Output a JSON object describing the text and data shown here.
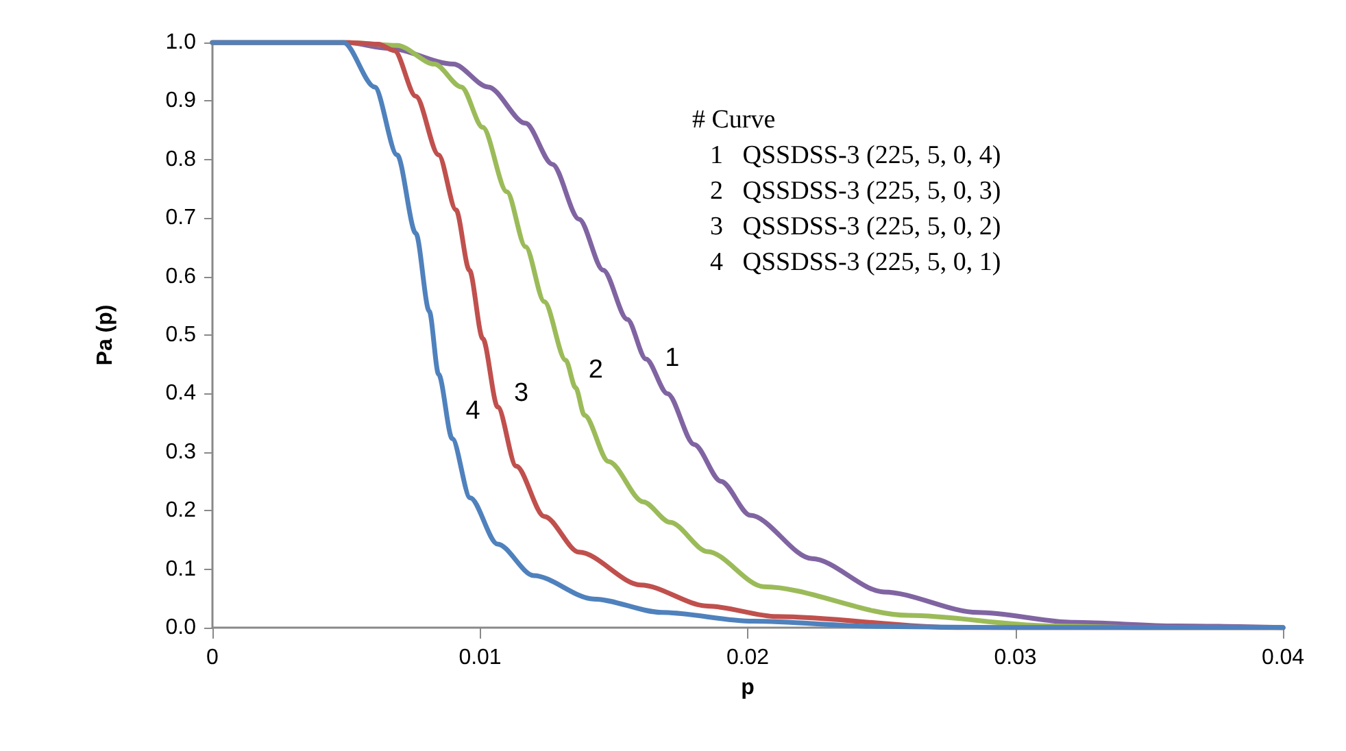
{
  "chart_data": {
    "type": "line",
    "xlabel": "p",
    "ylabel": "Pa (p)",
    "xlim": [
      0,
      0.04
    ],
    "xticks": [
      0,
      0.01,
      0.02,
      0.03,
      0.04
    ],
    "ylim": [
      0,
      1
    ],
    "yticks": [
      {
        "value": 0,
        "label": "0.0"
      },
      {
        "value": 0.1,
        "label": "0.1"
      },
      {
        "value": 0.2,
        "label": "0.2"
      },
      {
        "value": 0.3,
        "label": "0.3"
      },
      {
        "value": 0.4,
        "label": "0.4"
      },
      {
        "value": 0.5,
        "label": "0.5"
      },
      {
        "value": 0.6,
        "label": "0.6"
      },
      {
        "value": 0.7,
        "label": "0.7"
      },
      {
        "value": 0.8,
        "label": "0.8"
      },
      {
        "value": 0.9,
        "label": "0.9"
      },
      {
        "value": 1,
        "label": "1.0"
      }
    ],
    "grid": false,
    "marker": "none",
    "line_style": "solid",
    "series": [
      {
        "name": "1",
        "color": "#8064a2",
        "x": [
          0,
          0.005,
          0.0066,
          0.009,
          0.0103,
          0.0117,
          0.0127,
          0.0137,
          0.0146,
          0.0155,
          0.0162,
          0.017,
          0.018,
          0.019,
          0.0201,
          0.0224,
          0.0251,
          0.0286,
          0.0322,
          0.036,
          0.04
        ],
        "values": [
          1,
          1,
          0.99,
          0.963,
          0.924,
          0.862,
          0.792,
          0.698,
          0.611,
          0.527,
          0.459,
          0.4,
          0.313,
          0.25,
          0.192,
          0.118,
          0.061,
          0.026,
          0.009,
          0.003,
          0
        ]
      },
      {
        "name": "2",
        "color": "#9bbb59",
        "x": [
          0,
          0.005,
          0.0069,
          0.0083,
          0.0093,
          0.0101,
          0.011,
          0.0117,
          0.0124,
          0.0132,
          0.01357,
          0.0139,
          0.0148,
          0.0161,
          0.0171,
          0.0185,
          0.0206,
          0.026,
          0.0313,
          0.035,
          0.04
        ],
        "values": [
          1,
          1,
          0.995,
          0.963,
          0.924,
          0.855,
          0.745,
          0.651,
          0.557,
          0.457,
          0.41,
          0.363,
          0.284,
          0.215,
          0.18,
          0.13,
          0.07,
          0.021,
          0.003,
          0,
          0
        ]
      },
      {
        "name": "3",
        "color": "#c0504d",
        "x": [
          0,
          0.005,
          0.0062,
          0.0068,
          0.0076,
          0.00845,
          0.0091,
          0.0096,
          0.0101,
          0.01066,
          0.01135,
          0.0124,
          0.0137,
          0.016,
          0.0185,
          0.0211,
          0.0278,
          0.04
        ],
        "values": [
          1,
          1,
          0.997,
          0.986,
          0.908,
          0.808,
          0.714,
          0.611,
          0.494,
          0.377,
          0.276,
          0.19,
          0.129,
          0.073,
          0.037,
          0.019,
          0,
          0
        ]
      },
      {
        "name": "4",
        "color": "#4f81bd",
        "x": [
          0,
          0.0049,
          0.00606,
          0.0069,
          0.0076,
          0.0081,
          0.00845,
          0.00896,
          0.00963,
          0.01065,
          0.012,
          0.01424,
          0.0168,
          0.0202,
          0.025,
          0.03,
          0.04
        ],
        "values": [
          1,
          1,
          0.924,
          0.808,
          0.674,
          0.541,
          0.433,
          0.323,
          0.222,
          0.143,
          0.089,
          0.049,
          0.026,
          0.011,
          0.002,
          0,
          0
        ]
      }
    ],
    "annotations": [
      "# Curve",
      "1   QSSDSS-3 (225, 5, 0, 4)",
      "2   QSSDSS-3 (225, 5, 0, 3)",
      "3   QSSDSS-3 (225, 5, 0, 2)",
      "4   QSSDSS-3 (225, 5, 0, 1)"
    ]
  }
}
